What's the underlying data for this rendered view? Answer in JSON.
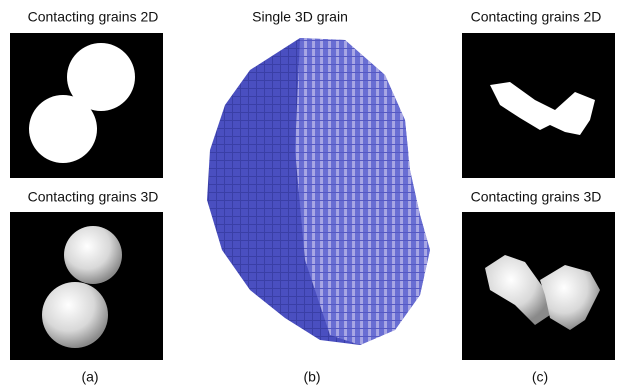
{
  "panels": [
    {
      "top_title": "Contacting grains 2D",
      "bottom_title": "Contacting grains 3D",
      "label": "(a)"
    },
    {
      "title": "Single 3D grain",
      "label": "(b)"
    },
    {
      "top_title": "Contacting grains 2D",
      "bottom_title": "Contacting grains 3D",
      "label": "(c)"
    }
  ]
}
